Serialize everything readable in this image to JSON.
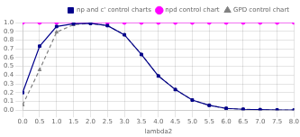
{
  "chart_data": {
    "type": "line",
    "xlabel": "lambda2",
    "x": [
      0,
      0.5,
      1.0,
      1.5,
      2.0,
      2.5,
      3.0,
      3.5,
      4.0,
      4.5,
      5.0,
      5.5,
      6.0,
      6.5,
      7.0,
      7.5,
      8.0
    ],
    "series": [
      {
        "name": "np and c' control charts",
        "color": "#00008B",
        "marker": "square",
        "line_style": "solid",
        "values": [
          0.2,
          0.73,
          0.955,
          0.985,
          0.99,
          0.965,
          0.86,
          0.635,
          0.39,
          0.235,
          0.115,
          0.055,
          0.02,
          0.01,
          0.005,
          0.002,
          0.001
        ]
      },
      {
        "name": "npd control chart",
        "color": "#FF00FF",
        "marker": "circle",
        "line_style": "solid",
        "values": [
          1.0,
          1.0,
          1.0,
          1.0,
          1.0,
          1.0,
          1.0,
          1.0,
          1.0,
          1.0,
          1.0,
          1.0,
          1.0,
          1.0,
          1.0,
          1.0,
          1.0
        ]
      },
      {
        "name": "GPD control chart",
        "color": "#808080",
        "marker": "triangle",
        "line_style": "dashed",
        "values": [
          0.06,
          0.46,
          0.89,
          0.975,
          0.99,
          0.965,
          0.86,
          0.635,
          0.39,
          0.235,
          0.115,
          0.055,
          0.02,
          0.01,
          0.005,
          0.002,
          0.001
        ]
      }
    ],
    "xlim": [
      0,
      8
    ],
    "ylim": [
      0,
      1.0
    ],
    "xticks": [
      {
        "value": 0,
        "label": "0.0"
      },
      {
        "value": 0.5,
        "label": "0.5"
      },
      {
        "value": 1,
        "label": "1.0"
      },
      {
        "value": 1.5,
        "label": "1.5"
      },
      {
        "value": 2,
        "label": "2.0"
      },
      {
        "value": 2.5,
        "label": "2.5"
      },
      {
        "value": 3,
        "label": "3.0"
      },
      {
        "value": 3.5,
        "label": "3.5"
      },
      {
        "value": 4,
        "label": "4.0"
      },
      {
        "value": 4.5,
        "label": "4.5"
      },
      {
        "value": 5,
        "label": "5.0"
      },
      {
        "value": 5.5,
        "label": "5.5"
      },
      {
        "value": 6,
        "label": "6.0"
      },
      {
        "value": 6.5,
        "label": "6.5"
      },
      {
        "value": 7,
        "label": "7.0"
      },
      {
        "value": 7.5,
        "label": "7.5"
      },
      {
        "value": 8,
        "label": "8.0"
      }
    ],
    "yticks": [
      {
        "value": 0,
        "label": "0.0"
      },
      {
        "value": 0.1,
        "label": "0.1"
      },
      {
        "value": 0.2,
        "label": "0.2"
      },
      {
        "value": 0.3,
        "label": "0.3"
      },
      {
        "value": 0.4,
        "label": "0.4"
      },
      {
        "value": 0.5,
        "label": "0.5"
      },
      {
        "value": 0.6,
        "label": "0.6"
      },
      {
        "value": 0.7,
        "label": "0.7"
      },
      {
        "value": 0.8,
        "label": "0.8"
      },
      {
        "value": 0.9,
        "label": "0.9"
      },
      {
        "value": 1.0,
        "label": "1.0"
      }
    ],
    "grid": true,
    "legend": "upper right"
  }
}
